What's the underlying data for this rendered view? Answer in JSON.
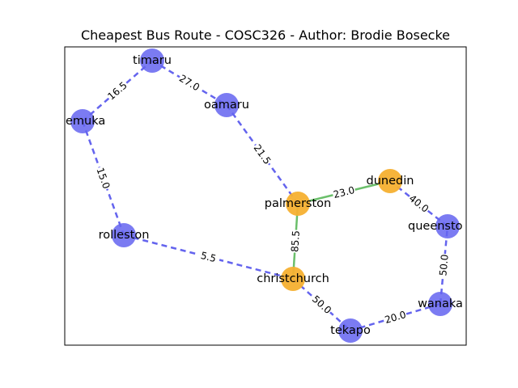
{
  "title": "Cheapest Bus Route - COSC326 - Author: Brodie Bosecke",
  "colors": {
    "default_node": "#6464f0",
    "route_node": "#f5b030",
    "default_edge": "#6464ee",
    "route_edge": "#6bbf6b",
    "frame": "#000000"
  },
  "nodes": [
    {
      "id": "timaru",
      "label": "timaru",
      "on_route": false
    },
    {
      "id": "temuka",
      "label": "emuka",
      "on_route": false
    },
    {
      "id": "oamaru",
      "label": "oamaru",
      "on_route": false
    },
    {
      "id": "palmerston",
      "label": "palmerston",
      "on_route": true
    },
    {
      "id": "dunedin",
      "label": "dunedin",
      "on_route": true
    },
    {
      "id": "queenstown",
      "label": "queensto",
      "on_route": false
    },
    {
      "id": "rolleston",
      "label": "rolleston",
      "on_route": false
    },
    {
      "id": "christchurch",
      "label": "christchurch",
      "on_route": true
    },
    {
      "id": "wanaka",
      "label": "wanaka",
      "on_route": false
    },
    {
      "id": "tekapo",
      "label": "tekapo",
      "on_route": false
    }
  ],
  "edges": [
    {
      "from": "temuka",
      "to": "timaru",
      "weight": "16.5",
      "on_route": false
    },
    {
      "from": "timaru",
      "to": "oamaru",
      "weight": "27.0",
      "on_route": false
    },
    {
      "from": "oamaru",
      "to": "palmerston",
      "weight": "21.5",
      "on_route": false
    },
    {
      "from": "palmerston",
      "to": "dunedin",
      "weight": "23.0",
      "on_route": true
    },
    {
      "from": "palmerston",
      "to": "christchurch",
      "weight": "85.5",
      "on_route": true
    },
    {
      "from": "temuka",
      "to": "rolleston",
      "weight": "15.0",
      "on_route": false
    },
    {
      "from": "rolleston",
      "to": "christchurch",
      "weight": "5.5",
      "on_route": false
    },
    {
      "from": "christchurch",
      "to": "tekapo",
      "weight": "50.0",
      "on_route": false
    },
    {
      "from": "tekapo",
      "to": "wanaka",
      "weight": "20.0",
      "on_route": false
    },
    {
      "from": "wanaka",
      "to": "queenstown",
      "weight": "50.0",
      "on_route": false
    },
    {
      "from": "queenstown",
      "to": "dunedin",
      "weight": "40.0",
      "on_route": false
    }
  ]
}
